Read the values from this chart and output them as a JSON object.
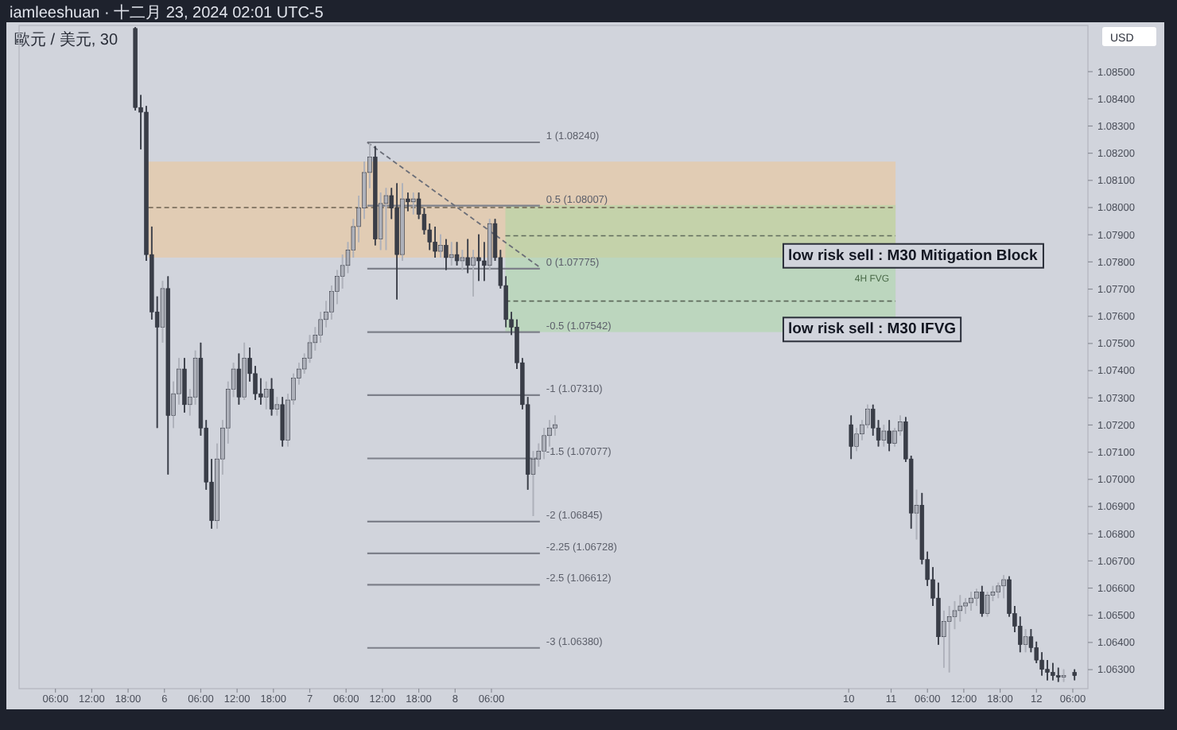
{
  "chart_data": {
    "type": "candlestick",
    "title": "歐元 / 美元, 30",
    "subtitle": "iamleeshuan · 十二月 23, 2024 02:01 UTC-5",
    "ylabel": "USD",
    "xlim": [
      "2024-11-05T00:00",
      "2024-11-12T08:30"
    ],
    "ylim": [
      1.0623,
      1.0867
    ],
    "xticks": [
      {
        "value": "2024-11-05T06:00",
        "label": "06:00"
      },
      {
        "value": "2024-11-05T12:00",
        "label": "12:00"
      },
      {
        "value": "2024-11-05T18:00",
        "label": "18:00"
      },
      {
        "value": "2024-11-06T00:00",
        "label": "6"
      },
      {
        "value": "2024-11-06T06:00",
        "label": "06:00"
      },
      {
        "value": "2024-11-06T12:00",
        "label": "12:00"
      },
      {
        "value": "2024-11-06T18:00",
        "label": "18:00"
      },
      {
        "value": "2024-11-07T00:00",
        "label": "7"
      },
      {
        "value": "2024-11-07T06:00",
        "label": "06:00"
      },
      {
        "value": "2024-11-07T12:00",
        "label": "12:00"
      },
      {
        "value": "2024-11-07T18:00",
        "label": "18:00"
      },
      {
        "value": "2024-11-08T00:00",
        "label": "8"
      },
      {
        "value": "2024-11-08T06:00",
        "label": "06:00"
      },
      {
        "value": "2024-11-10T17:00",
        "label": "10"
      },
      {
        "value": "2024-11-11T00:00",
        "label": "11"
      },
      {
        "value": "2024-11-11T06:00",
        "label": "06:00"
      },
      {
        "value": "2024-11-11T12:00",
        "label": "12:00"
      },
      {
        "value": "2024-11-11T18:00",
        "label": "18:00"
      },
      {
        "value": "2024-11-12T00:00",
        "label": "12"
      },
      {
        "value": "2024-11-12T06:00",
        "label": "06:00"
      }
    ],
    "yticks": [
      {
        "value": 1.063,
        "label": "1.06300"
      },
      {
        "value": 1.064,
        "label": "1.06400"
      },
      {
        "value": 1.065,
        "label": "1.06500"
      },
      {
        "value": 1.066,
        "label": "1.06600"
      },
      {
        "value": 1.067,
        "label": "1.06700"
      },
      {
        "value": 1.068,
        "label": "1.06800"
      },
      {
        "value": 1.069,
        "label": "1.06900"
      },
      {
        "value": 1.07,
        "label": "1.07000"
      },
      {
        "value": 1.071,
        "label": "1.07100"
      },
      {
        "value": 1.072,
        "label": "1.07200"
      },
      {
        "value": 1.073,
        "label": "1.07300"
      },
      {
        "value": 1.074,
        "label": "1.07400"
      },
      {
        "value": 1.075,
        "label": "1.07500"
      },
      {
        "value": 1.076,
        "label": "1.07600"
      },
      {
        "value": 1.077,
        "label": "1.07700"
      },
      {
        "value": 1.078,
        "label": "1.07800"
      },
      {
        "value": 1.079,
        "label": "1.07900"
      },
      {
        "value": 1.08,
        "label": "1.08000"
      },
      {
        "value": 1.081,
        "label": "1.08100"
      },
      {
        "value": 1.082,
        "label": "1.08200"
      },
      {
        "value": 1.083,
        "label": "1.08300"
      },
      {
        "value": 1.084,
        "label": "1.08400"
      },
      {
        "value": 1.085,
        "label": "1.08500"
      }
    ],
    "x": [
      "2024-11-05T19:12",
      "2024-11-05T20:06",
      "2024-11-05T21:00",
      "2024-11-05T21:54",
      "2024-11-05T22:48",
      "2024-11-05T23:42",
      "2024-11-06T00:36",
      "2024-11-06T01:30",
      "2024-11-06T02:24",
      "2024-11-06T03:18",
      "2024-11-06T04:12",
      "2024-11-06T05:06",
      "2024-11-06T06:00",
      "2024-11-06T06:54",
      "2024-11-06T07:48",
      "2024-11-06T08:42",
      "2024-11-06T09:36",
      "2024-11-06T10:30",
      "2024-11-06T11:24",
      "2024-11-06T12:18",
      "2024-11-06T13:12",
      "2024-11-06T14:06",
      "2024-11-06T15:00",
      "2024-11-06T15:54",
      "2024-11-06T16:48",
      "2024-11-06T17:42",
      "2024-11-06T18:36",
      "2024-11-06T19:30",
      "2024-11-06T20:24",
      "2024-11-06T21:18",
      "2024-11-06T22:12",
      "2024-11-06T23:06",
      "2024-11-07T00:00",
      "2024-11-07T00:54",
      "2024-11-07T01:48",
      "2024-11-07T02:42",
      "2024-11-07T03:36",
      "2024-11-07T04:30",
      "2024-11-07T05:24",
      "2024-11-07T06:18",
      "2024-11-07T07:12",
      "2024-11-07T08:06",
      "2024-11-07T09:00",
      "2024-11-07T09:54",
      "2024-11-07T10:48",
      "2024-11-07T11:42",
      "2024-11-07T12:36",
      "2024-11-07T13:30",
      "2024-11-07T14:24",
      "2024-11-07T15:18",
      "2024-11-07T16:12",
      "2024-11-07T17:06",
      "2024-11-07T18:00",
      "2024-11-07T18:54",
      "2024-11-07T19:48",
      "2024-11-07T20:42",
      "2024-11-07T21:36",
      "2024-11-07T22:30",
      "2024-11-07T23:24",
      "2024-11-08T00:18",
      "2024-11-08T01:12",
      "2024-11-08T02:06",
      "2024-11-08T03:00",
      "2024-11-08T03:54",
      "2024-11-08T04:48",
      "2024-11-08T05:42",
      "2024-11-08T06:36",
      "2024-11-08T07:30",
      "2024-11-08T08:24",
      "2024-11-08T09:18",
      "2024-11-08T10:12",
      "2024-11-08T11:06",
      "2024-11-08T12:00",
      "2024-11-08T12:54",
      "2024-11-08T13:48",
      "2024-11-08T14:42",
      "2024-11-08T15:36",
      "2024-11-08T16:30",
      "2024-11-10T17:24",
      "2024-11-10T18:18",
      "2024-11-10T19:12",
      "2024-11-10T20:06",
      "2024-11-10T21:00",
      "2024-11-10T21:54",
      "2024-11-10T22:48",
      "2024-11-10T23:42",
      "2024-11-11T00:36",
      "2024-11-11T01:30",
      "2024-11-11T02:24",
      "2024-11-11T03:18",
      "2024-11-11T04:12",
      "2024-11-11T05:06",
      "2024-11-11T06:00",
      "2024-11-11T06:54",
      "2024-11-11T07:48",
      "2024-11-11T08:42",
      "2024-11-11T09:36",
      "2024-11-11T10:30",
      "2024-11-11T11:24",
      "2024-11-11T12:18",
      "2024-11-11T13:12",
      "2024-11-11T14:06",
      "2024-11-11T15:00",
      "2024-11-11T15:54",
      "2024-11-11T16:48",
      "2024-11-11T17:42",
      "2024-11-11T18:36",
      "2024-11-11T19:30",
      "2024-11-11T20:24",
      "2024-11-11T21:18",
      "2024-11-11T22:12",
      "2024-11-11T23:06",
      "2024-11-12T00:00",
      "2024-11-12T00:54",
      "2024-11-12T01:48",
      "2024-11-12T02:42",
      "2024-11-12T03:36",
      "2024-11-12T04:30",
      "2024-11-12T06:18"
    ],
    "ohlc": [
      [
        1.08659,
        1.08664,
        1.08357,
        1.08368
      ],
      [
        1.08368,
        1.08414,
        1.08214,
        1.08351
      ],
      [
        1.08351,
        1.08374,
        1.07804,
        1.07827
      ],
      [
        1.07827,
        1.0793,
        1.07588,
        1.07616
      ],
      [
        1.07616,
        1.07673,
        1.07189,
        1.0756
      ],
      [
        1.0756,
        1.0773,
        1.07503,
        1.07702
      ],
      [
        1.07702,
        1.07747,
        1.07018,
        1.07235
      ],
      [
        1.07235,
        1.0736,
        1.07189,
        1.07315
      ],
      [
        1.07315,
        1.07446,
        1.07275,
        1.07406
      ],
      [
        1.07406,
        1.07446,
        1.07246,
        1.07275
      ],
      [
        1.07275,
        1.07332,
        1.07235,
        1.07303
      ],
      [
        1.07303,
        1.07474,
        1.07275,
        1.07446
      ],
      [
        1.07446,
        1.07503,
        1.07161,
        1.07189
      ],
      [
        1.07189,
        1.07218,
        1.06962,
        1.0699
      ],
      [
        1.0699,
        1.07075,
        1.06819,
        1.06848
      ],
      [
        1.06848,
        1.07132,
        1.06819,
        1.07075
      ],
      [
        1.07075,
        1.07218,
        1.07018,
        1.07189
      ],
      [
        1.07189,
        1.0736,
        1.07132,
        1.07332
      ],
      [
        1.07332,
        1.07429,
        1.07303,
        1.07406
      ],
      [
        1.07406,
        1.07463,
        1.07275,
        1.07303
      ],
      [
        1.07303,
        1.07503,
        1.07292,
        1.07446
      ],
      [
        1.07446,
        1.07485,
        1.0736,
        1.07389
      ],
      [
        1.07389,
        1.07417,
        1.07292,
        1.07315
      ],
      [
        1.07315,
        1.07372,
        1.07275,
        1.07303
      ],
      [
        1.07303,
        1.0736,
        1.07258,
        1.07332
      ],
      [
        1.07332,
        1.07372,
        1.07235,
        1.07258
      ],
      [
        1.07258,
        1.07303,
        1.07235,
        1.07275
      ],
      [
        1.07275,
        1.07303,
        1.07121,
        1.07144
      ],
      [
        1.07144,
        1.07315,
        1.07121,
        1.07292
      ],
      [
        1.07292,
        1.07389,
        1.07275,
        1.07372
      ],
      [
        1.07372,
        1.07429,
        1.07349,
        1.07406
      ],
      [
        1.07406,
        1.07463,
        1.07389,
        1.07446
      ],
      [
        1.07446,
        1.07531,
        1.07429,
        1.07503
      ],
      [
        1.07503,
        1.0756,
        1.07474,
        1.07531
      ],
      [
        1.07531,
        1.07616,
        1.07503,
        1.07588
      ],
      [
        1.07588,
        1.07656,
        1.0756,
        1.07616
      ],
      [
        1.07616,
        1.07713,
        1.07588,
        1.07691
      ],
      [
        1.07691,
        1.0777,
        1.07645,
        1.07747
      ],
      [
        1.07747,
        1.07827,
        1.07702,
        1.07787
      ],
      [
        1.07787,
        1.07873,
        1.07759,
        1.07844
      ],
      [
        1.07844,
        1.07958,
        1.07816,
        1.0793
      ],
      [
        1.0793,
        1.08044,
        1.07873,
        1.07998
      ],
      [
        1.07998,
        1.08169,
        1.07958,
        1.08129
      ],
      [
        1.08129,
        1.08237,
        1.08072,
        1.08186
      ],
      [
        1.08186,
        1.08226,
        1.07861,
        1.07884
      ],
      [
        1.07884,
        1.08055,
        1.07844,
        1.08015
      ],
      [
        1.08015,
        1.08072,
        1.07844,
        1.08044
      ],
      [
        1.08044,
        1.08072,
        1.07958,
        1.07998
      ],
      [
        1.07998,
        1.08089,
        1.07662,
        1.07827
      ],
      [
        1.07827,
        1.08089,
        1.07804,
        1.08032
      ],
      [
        1.08032,
        1.08055,
        1.07987,
        1.08021
      ],
      [
        1.08021,
        1.08055,
        1.07975,
        1.08032
      ],
      [
        1.08032,
        1.08055,
        1.07958,
        1.07975
      ],
      [
        1.07975,
        1.07998,
        1.07901,
        1.07918
      ],
      [
        1.07918,
        1.07941,
        1.07844,
        1.07873
      ],
      [
        1.07873,
        1.0793,
        1.07816,
        1.07839
      ],
      [
        1.07839,
        1.07901,
        1.07816,
        1.07861
      ],
      [
        1.07861,
        1.07884,
        1.0777,
        1.07816
      ],
      [
        1.07816,
        1.07873,
        1.07787,
        1.07827
      ],
      [
        1.07827,
        1.07873,
        1.07787,
        1.07804
      ],
      [
        1.07804,
        1.07844,
        1.0777,
        1.07816
      ],
      [
        1.07816,
        1.07884,
        1.07759,
        1.07787
      ],
      [
        1.07787,
        1.07844,
        1.07673,
        1.07816
      ],
      [
        1.07816,
        1.07901,
        1.0773,
        1.07804
      ],
      [
        1.07804,
        1.07873,
        1.0773,
        1.07787
      ],
      [
        1.07787,
        1.07958,
        1.0777,
        1.07941
      ],
      [
        1.07941,
        1.07958,
        1.07804,
        1.07816
      ],
      [
        1.07816,
        1.07844,
        1.07702,
        1.07713
      ],
      [
        1.07713,
        1.07747,
        1.0756,
        1.07588
      ],
      [
        1.07588,
        1.07616,
        1.07531,
        1.0756
      ],
      [
        1.0756,
        1.07588,
        1.07406,
        1.07429
      ],
      [
        1.07429,
        1.07446,
        1.07258,
        1.07275
      ],
      [
        1.07275,
        1.07303,
        1.06962,
        1.07018
      ],
      [
        1.07018,
        1.07104,
        1.06865,
        1.07075
      ],
      [
        1.07075,
        1.07132,
        1.07047,
        1.07104
      ],
      [
        1.07104,
        1.07189,
        1.07075,
        1.07161
      ],
      [
        1.07161,
        1.07218,
        1.07121,
        1.07189
      ],
      [
        1.07189,
        1.07235,
        1.07161,
        1.07201
      ],
      [
        1.07201,
        1.07235,
        1.07075,
        1.07121
      ],
      [
        1.07121,
        1.07189,
        1.07104,
        1.07167
      ],
      [
        1.07167,
        1.07218,
        1.07144,
        1.07201
      ],
      [
        1.07201,
        1.07275,
        1.07189,
        1.07258
      ],
      [
        1.07258,
        1.07275,
        1.07161,
        1.07189
      ],
      [
        1.07189,
        1.07218,
        1.07121,
        1.07144
      ],
      [
        1.07144,
        1.07201,
        1.07121,
        1.07178
      ],
      [
        1.07178,
        1.07218,
        1.07104,
        1.07132
      ],
      [
        1.07132,
        1.07189,
        1.07121,
        1.07178
      ],
      [
        1.07178,
        1.07235,
        1.07161,
        1.07212
      ],
      [
        1.07212,
        1.07229,
        1.07064,
        1.07075
      ],
      [
        1.07075,
        1.07087,
        1.06819,
        1.06876
      ],
      [
        1.06876,
        1.06962,
        1.06779,
        1.06905
      ],
      [
        1.06905,
        1.0695,
        1.06688,
        1.06705
      ],
      [
        1.06705,
        1.06734,
        1.06608,
        1.06631
      ],
      [
        1.06631,
        1.06677,
        1.06534,
        1.06563
      ],
      [
        1.06563,
        1.0662,
        1.06392,
        1.06421
      ],
      [
        1.06421,
        1.06517,
        1.06307,
        1.06477
      ],
      [
        1.06477,
        1.06534,
        1.0629,
        1.06495
      ],
      [
        1.06495,
        1.06552,
        1.06449,
        1.06517
      ],
      [
        1.06517,
        1.06574,
        1.06477,
        1.06534
      ],
      [
        1.06534,
        1.06563,
        1.06506,
        1.06546
      ],
      [
        1.06546,
        1.06586,
        1.06517,
        1.06563
      ],
      [
        1.06563,
        1.06597,
        1.06534,
        1.06586
      ],
      [
        1.06586,
        1.06608,
        1.06495,
        1.06506
      ],
      [
        1.06506,
        1.06586,
        1.06495,
        1.06574
      ],
      [
        1.06574,
        1.06608,
        1.06552,
        1.06586
      ],
      [
        1.06586,
        1.0662,
        1.06563,
        1.06608
      ],
      [
        1.06608,
        1.06648,
        1.06563,
        1.06631
      ],
      [
        1.06631,
        1.06643,
        1.06495,
        1.06506
      ],
      [
        1.06506,
        1.06534,
        1.06438,
        1.0646
      ],
      [
        1.0646,
        1.06495,
        1.06364,
        1.06392
      ],
      [
        1.06392,
        1.06449,
        1.06364,
        1.06421
      ],
      [
        1.06421,
        1.06449,
        1.06364,
        1.06381
      ],
      [
        1.06381,
        1.06403,
        1.06324,
        1.06335
      ],
      [
        1.06335,
        1.06364,
        1.06278,
        1.06301
      ],
      [
        1.06301,
        1.06335,
        1.06261,
        1.0629
      ],
      [
        1.0629,
        1.06324,
        1.06261,
        1.06278
      ],
      [
        1.06278,
        1.06307,
        1.06255,
        1.06272
      ],
      [
        1.06272,
        1.06301,
        1.06255,
        1.06278
      ],
      [
        1.0629,
        1.06301,
        1.06261,
        1.06278
      ]
    ],
    "series": [
      {
        "type": "line",
        "color": "#6b6e78",
        "line_style": "dashed",
        "x": [
          "2024-11-07T09:30",
          "2024-11-08T14:00"
        ],
        "values": [
          1.0824,
          1.0778
        ]
      }
    ],
    "bands": [
      {
        "axis": "y",
        "from": 1.07816,
        "to": 1.08169,
        "color": "#f2c48c"
      },
      {
        "axis": "y",
        "from": 1.07542,
        "to": 1.08009,
        "color": "#a8d8a0",
        "label": "4H FVG"
      }
    ],
    "ref_lines": [
      {
        "axis": "y",
        "value": 1.0824,
        "label": "1 (1.08240)",
        "color": "#7d808a"
      },
      {
        "axis": "y",
        "value": 1.08007,
        "label": "0.5 (1.08007)",
        "color": "#7d808a"
      },
      {
        "axis": "y",
        "value": 1.07775,
        "label": "0 (1.07775)",
        "color": "#7d808a"
      },
      {
        "axis": "y",
        "value": 1.07542,
        "label": "-0.5 (1.07542)",
        "color": "#7d808a"
      },
      {
        "axis": "y",
        "value": 1.0731,
        "label": "-1 (1.07310)",
        "color": "#7d808a"
      },
      {
        "axis": "y",
        "value": 1.07077,
        "label": "-1.5 (1.07077)",
        "color": "#7d808a"
      },
      {
        "axis": "y",
        "value": 1.06845,
        "label": "-2 (1.06845)",
        "color": "#7d808a"
      },
      {
        "axis": "y",
        "value": 1.06728,
        "label": "-2.25 (1.06728)",
        "color": "#7d808a"
      },
      {
        "axis": "y",
        "value": 1.06612,
        "label": "-2.5 (1.06612)",
        "color": "#7d808a"
      },
      {
        "axis": "y",
        "value": 1.0638,
        "label": "-3 (1.06380)",
        "color": "#7d808a"
      },
      {
        "axis": "y",
        "value": 1.08,
        "color": "#6e6250",
        "line_style": "dashed"
      },
      {
        "axis": "y",
        "value": 1.07896,
        "color": "#5f6b5c",
        "line_style": "dashed"
      },
      {
        "axis": "y",
        "value": 1.07656,
        "color": "#5f6b5c",
        "line_style": "dashed"
      }
    ],
    "annotations": [
      "low risk sell : M30 Mitigation Block",
      "low risk sell : M30 IFVG"
    ]
  }
}
